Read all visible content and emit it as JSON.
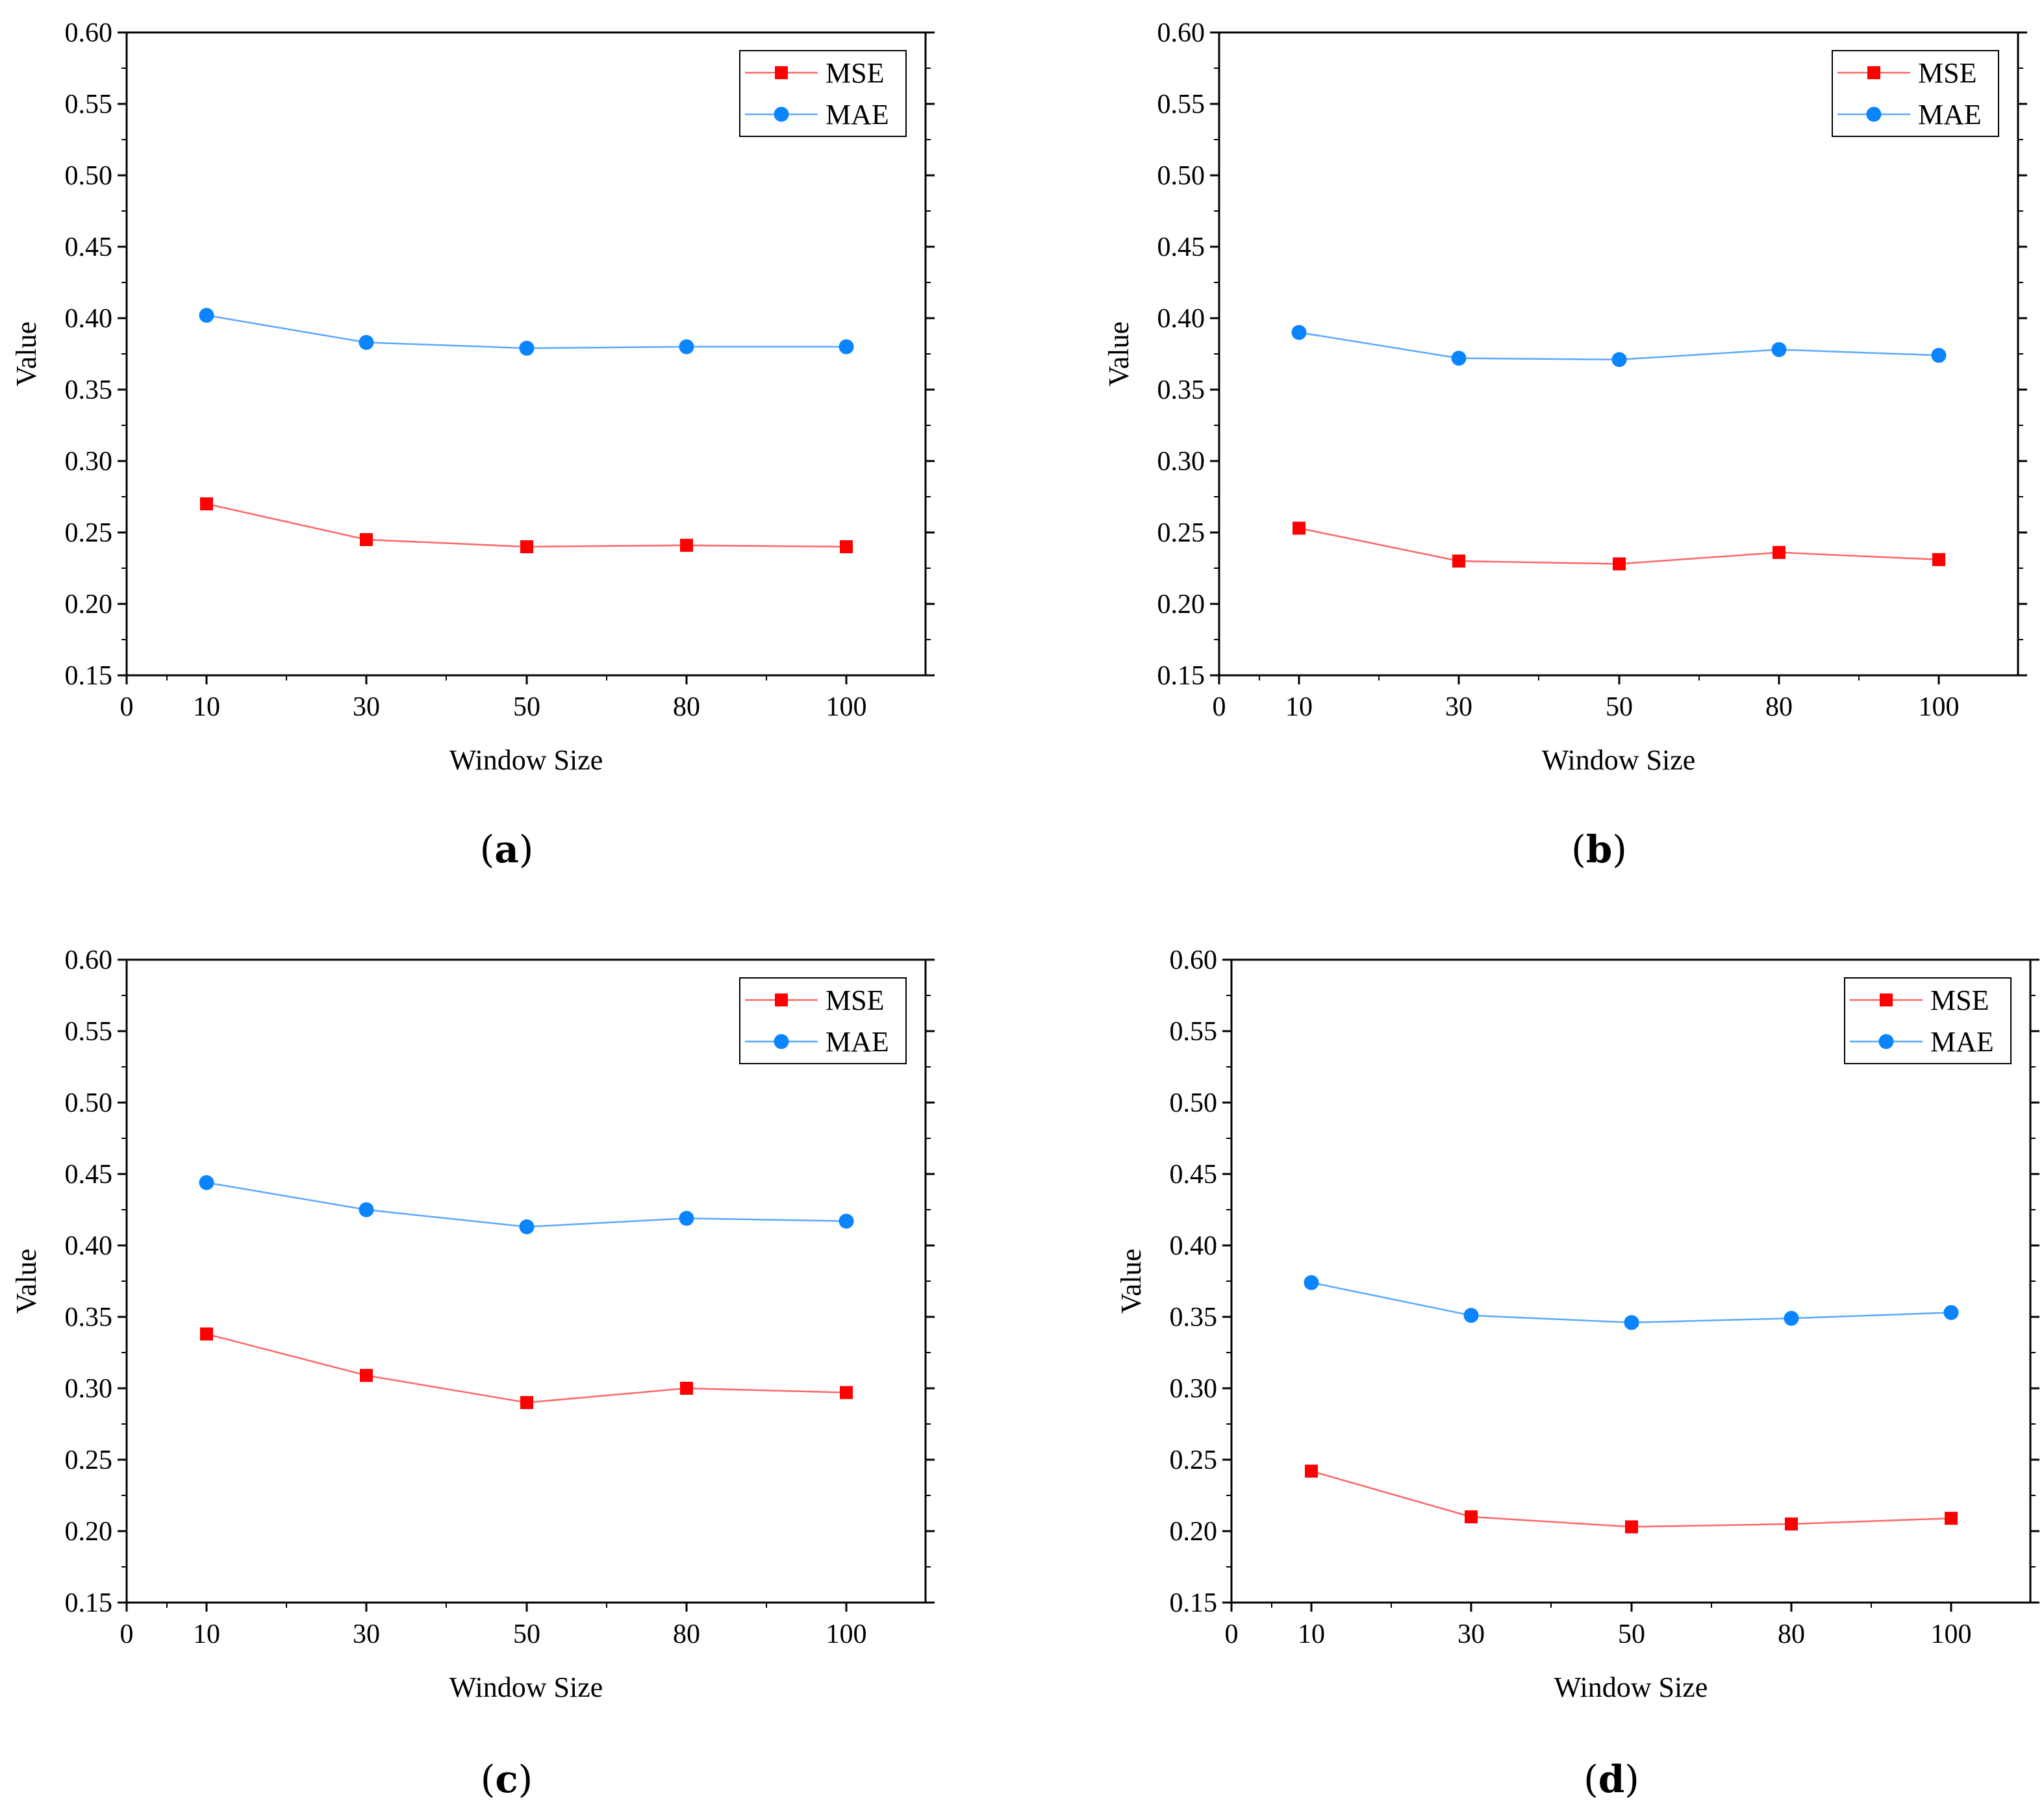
{
  "figure": {
    "panels": [
      {
        "caption_open": "(",
        "caption_letter": "a",
        "caption_close": ")"
      },
      {
        "caption_open": "(",
        "caption_letter": "b",
        "caption_close": ")"
      },
      {
        "caption_open": "(",
        "caption_letter": "c",
        "caption_close": ")"
      },
      {
        "caption_open": "(",
        "caption_letter": "d",
        "caption_close": ")"
      }
    ]
  },
  "colors": {
    "mse": "#ff0000",
    "mae": "#0a84ff",
    "mse_line": "#ff6666",
    "mae_line": "#5aa8ff"
  },
  "chart_data": [
    {
      "type": "line",
      "panel": "a",
      "xlabel": "Window Size",
      "ylabel": "Value",
      "x_tick_labels": [
        "0",
        "10",
        "30",
        "50",
        "80",
        "100"
      ],
      "y_ticks": [
        "0.15",
        "0.20",
        "0.25",
        "0.30",
        "0.35",
        "0.40",
        "0.45",
        "0.50",
        "0.55",
        "0.60"
      ],
      "ylim": [
        0.15,
        0.6
      ],
      "categories": [
        "10",
        "30",
        "50",
        "80",
        "100"
      ],
      "legend_position": "top-right",
      "series": [
        {
          "name": "MSE",
          "marker": "square",
          "values": [
            0.27,
            0.245,
            0.24,
            0.241,
            0.24
          ]
        },
        {
          "name": "MAE",
          "marker": "circle",
          "values": [
            0.402,
            0.383,
            0.379,
            0.38,
            0.38
          ]
        }
      ]
    },
    {
      "type": "line",
      "panel": "b",
      "xlabel": "Window Size",
      "ylabel": "Value",
      "x_tick_labels": [
        "0",
        "10",
        "30",
        "50",
        "80",
        "100"
      ],
      "y_ticks": [
        "0.15",
        "0.20",
        "0.25",
        "0.30",
        "0.35",
        "0.40",
        "0.45",
        "0.50",
        "0.55",
        "0.60"
      ],
      "ylim": [
        0.15,
        0.6
      ],
      "categories": [
        "10",
        "30",
        "50",
        "80",
        "100"
      ],
      "legend_position": "top-right",
      "series": [
        {
          "name": "MSE",
          "marker": "square",
          "values": [
            0.253,
            0.23,
            0.228,
            0.236,
            0.231
          ]
        },
        {
          "name": "MAE",
          "marker": "circle",
          "values": [
            0.39,
            0.372,
            0.371,
            0.378,
            0.374
          ]
        }
      ]
    },
    {
      "type": "line",
      "panel": "c",
      "xlabel": "Window Size",
      "ylabel": "Value",
      "x_tick_labels": [
        "0",
        "10",
        "30",
        "50",
        "80",
        "100"
      ],
      "y_ticks": [
        "0.15",
        "0.20",
        "0.25",
        "0.30",
        "0.35",
        "0.40",
        "0.45",
        "0.50",
        "0.55",
        "0.60"
      ],
      "ylim": [
        0.15,
        0.6
      ],
      "categories": [
        "10",
        "30",
        "50",
        "80",
        "100"
      ],
      "legend_position": "top-right",
      "series": [
        {
          "name": "MSE",
          "marker": "square",
          "values": [
            0.338,
            0.309,
            0.29,
            0.3,
            0.297
          ]
        },
        {
          "name": "MAE",
          "marker": "circle",
          "values": [
            0.444,
            0.425,
            0.413,
            0.419,
            0.417
          ]
        }
      ]
    },
    {
      "type": "line",
      "panel": "d",
      "xlabel": "Window Size",
      "ylabel": "Value",
      "x_tick_labels": [
        "0",
        "10",
        "30",
        "50",
        "80",
        "100"
      ],
      "y_ticks": [
        "0.15",
        "0.20",
        "0.25",
        "0.30",
        "0.35",
        "0.40",
        "0.45",
        "0.50",
        "0.55",
        "0.60"
      ],
      "ylim": [
        0.15,
        0.6
      ],
      "categories": [
        "10",
        "30",
        "50",
        "80",
        "100"
      ],
      "legend_position": "top-right",
      "series": [
        {
          "name": "MSE",
          "marker": "square",
          "values": [
            0.242,
            0.21,
            0.203,
            0.205,
            0.209
          ]
        },
        {
          "name": "MAE",
          "marker": "circle",
          "values": [
            0.374,
            0.351,
            0.346,
            0.349,
            0.353
          ]
        }
      ]
    }
  ]
}
